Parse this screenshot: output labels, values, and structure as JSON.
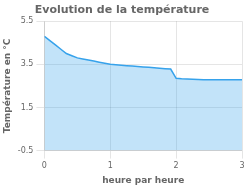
{
  "chart_data": {
    "type": "area",
    "title": "Evolution de la température",
    "x_label": "heure par heure",
    "y_label": "Température en °C",
    "x": [
      0,
      0.083,
      0.167,
      0.25,
      0.333,
      0.417,
      0.5,
      0.583,
      0.667,
      0.75,
      0.833,
      0.917,
      1.0,
      1.083,
      1.167,
      1.25,
      1.333,
      1.417,
      1.5,
      1.583,
      1.667,
      1.75,
      1.833,
      1.917,
      2.0,
      2.083,
      2.167,
      2.25,
      2.333,
      2.417,
      2.5,
      2.583,
      2.667,
      2.75,
      2.833,
      2.917,
      3.0
    ],
    "values": [
      4.8,
      4.6,
      4.4,
      4.2,
      4.0,
      3.9,
      3.8,
      3.75,
      3.7,
      3.65,
      3.6,
      3.55,
      3.5,
      3.48,
      3.46,
      3.44,
      3.42,
      3.4,
      3.38,
      3.36,
      3.34,
      3.32,
      3.3,
      3.28,
      2.85,
      2.83,
      2.82,
      2.81,
      2.8,
      2.79,
      2.78,
      2.78,
      2.78,
      2.78,
      2.78,
      2.78,
      2.78
    ],
    "xlim": [
      0,
      3
    ],
    "xticks": [
      0,
      1,
      2,
      3
    ],
    "ylim": [
      -0.5,
      5.5
    ],
    "yticks": [
      -0.5,
      1.5,
      3.5,
      5.5
    ],
    "grid": true
  }
}
